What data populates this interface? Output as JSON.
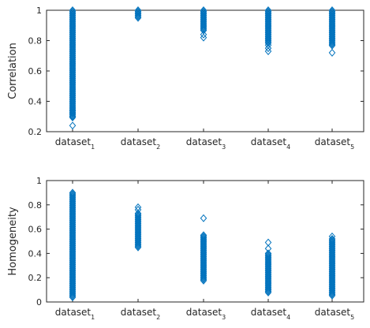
{
  "chart_data": [
    {
      "type": "scatter",
      "ylabel": "Correlation",
      "ylim": [
        0.2,
        1
      ],
      "yticks": [
        "0.2",
        "0.4",
        "0.6",
        "0.8",
        "1"
      ],
      "color": "#0072BD",
      "marker": "diamond-open",
      "categories": [
        {
          "base": "dataset",
          "sub": "1"
        },
        {
          "base": "dataset",
          "sub": "2"
        },
        {
          "base": "dataset",
          "sub": "3"
        },
        {
          "base": "dataset",
          "sub": "4"
        },
        {
          "base": "dataset",
          "sub": "5"
        }
      ],
      "series": [
        {
          "min": 0.29,
          "max": 1.0,
          "outliers": [
            0.24,
            0.3,
            0.32,
            0.34
          ]
        },
        {
          "min": 0.95,
          "max": 1.0,
          "outliers": []
        },
        {
          "min": 0.86,
          "max": 1.0,
          "outliers": [
            0.82,
            0.84
          ]
        },
        {
          "min": 0.78,
          "max": 1.0,
          "outliers": [
            0.73,
            0.75,
            0.77
          ]
        },
        {
          "min": 0.76,
          "max": 1.0,
          "outliers": [
            0.72
          ]
        }
      ]
    },
    {
      "type": "scatter",
      "ylabel": "Homogeneity",
      "ylim": [
        0,
        1
      ],
      "yticks": [
        "0",
        "0.2",
        "0.4",
        "0.6",
        "0.8",
        "1"
      ],
      "color": "#0072BD",
      "marker": "diamond-open",
      "categories": [
        {
          "base": "dataset",
          "sub": "1"
        },
        {
          "base": "dataset",
          "sub": "2"
        },
        {
          "base": "dataset",
          "sub": "3"
        },
        {
          "base": "dataset",
          "sub": "4"
        },
        {
          "base": "dataset",
          "sub": "5"
        }
      ],
      "series": [
        {
          "min": 0.03,
          "max": 0.89,
          "outliers": [
            0.9
          ]
        },
        {
          "min": 0.44,
          "max": 0.73,
          "outliers": [
            0.76,
            0.78
          ]
        },
        {
          "min": 0.17,
          "max": 0.55,
          "outliers": [
            0.69
          ]
        },
        {
          "min": 0.07,
          "max": 0.4,
          "outliers": [
            0.44,
            0.49
          ]
        },
        {
          "min": 0.05,
          "max": 0.52,
          "outliers": [
            0.54
          ]
        }
      ]
    }
  ]
}
